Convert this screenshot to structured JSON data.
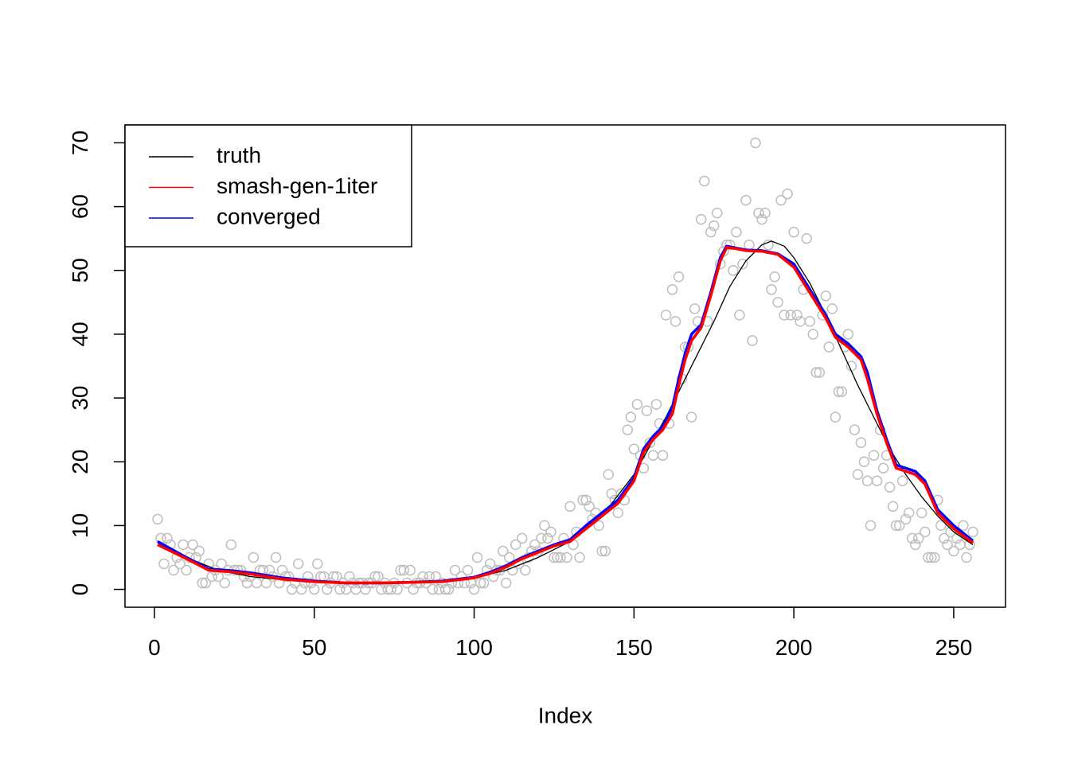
{
  "chart_data": {
    "type": "scatter",
    "xlabel": "Index",
    "xlim": [
      -9.2,
      266.2
    ],
    "ylim": [
      -2.8,
      72.8
    ],
    "xticks": [
      0,
      50,
      100,
      150,
      200,
      250
    ],
    "yticks": [
      0,
      10,
      20,
      30,
      40,
      50,
      60,
      70
    ],
    "legend": "top-left",
    "points": {
      "color": "#bebebe",
      "x": [
        1,
        2,
        3,
        4,
        5,
        6,
        7,
        8,
        9,
        10,
        11,
        12,
        13,
        14,
        15,
        16,
        17,
        18,
        19,
        20,
        21,
        22,
        23,
        24,
        25,
        26,
        27,
        28,
        29,
        30,
        31,
        32,
        33,
        34,
        35,
        36,
        37,
        38,
        39,
        40,
        41,
        42,
        43,
        44,
        45,
        46,
        47,
        48,
        49,
        50,
        51,
        52,
        53,
        54,
        55,
        56,
        57,
        58,
        59,
        60,
        61,
        62,
        63,
        64,
        65,
        66,
        67,
        68,
        69,
        70,
        71,
        72,
        73,
        74,
        75,
        76,
        77,
        78,
        79,
        80,
        81,
        82,
        83,
        84,
        85,
        86,
        87,
        88,
        89,
        90,
        91,
        92,
        93,
        94,
        95,
        96,
        97,
        98,
        99,
        100,
        101,
        102,
        103,
        104,
        105,
        106,
        107,
        108,
        109,
        110,
        111,
        112,
        113,
        114,
        115,
        116,
        117,
        118,
        119,
        120,
        121,
        122,
        123,
        124,
        125,
        126,
        127,
        128,
        129,
        130,
        131,
        132,
        133,
        134,
        135,
        136,
        137,
        138,
        139,
        140,
        141,
        142,
        143,
        144,
        145,
        146,
        147,
        148,
        149,
        150,
        151,
        152,
        153,
        154,
        155,
        156,
        157,
        158,
        159,
        160,
        161,
        162,
        163,
        164,
        165,
        166,
        167,
        168,
        169,
        170,
        171,
        172,
        173,
        174,
        175,
        176,
        177,
        178,
        179,
        180,
        181,
        182,
        183,
        184,
        185,
        186,
        187,
        188,
        189,
        190,
        191,
        192,
        193,
        194,
        195,
        196,
        197,
        198,
        199,
        200,
        201,
        202,
        203,
        204,
        205,
        206,
        207,
        208,
        209,
        210,
        211,
        212,
        213,
        214,
        215,
        216,
        217,
        218,
        219,
        220,
        221,
        222,
        223,
        224,
        225,
        226,
        227,
        228,
        229,
        230,
        231,
        232,
        233,
        234,
        235,
        236,
        237,
        238,
        239,
        240,
        241,
        242,
        243,
        244,
        245,
        246,
        247,
        248,
        249,
        250,
        251,
        252,
        253,
        254,
        255,
        256
      ],
      "values": [
        11,
        8,
        4,
        8,
        7,
        3,
        5,
        4,
        7,
        3,
        5,
        7,
        5,
        6,
        1,
        1,
        4,
        2,
        3,
        2,
        4,
        1,
        3,
        7,
        3,
        3,
        3,
        2,
        1,
        2,
        5,
        1,
        3,
        3,
        1,
        3,
        2,
        5,
        1,
        3,
        2,
        2,
        0,
        1,
        4,
        0,
        1,
        2,
        1,
        0,
        4,
        2,
        2,
        0,
        1,
        2,
        2,
        0,
        1,
        0,
        2,
        1,
        0,
        1,
        1,
        0,
        1,
        1,
        2,
        2,
        0,
        1,
        0,
        0,
        1,
        0,
        3,
        3,
        1,
        3,
        0,
        1,
        1,
        2,
        1,
        2,
        0,
        2,
        0,
        1,
        0,
        0,
        1,
        3,
        1,
        2,
        1,
        3,
        1,
        0,
        5,
        1,
        1,
        3,
        4,
        2,
        3,
        3,
        6,
        1,
        5,
        3,
        7,
        4,
        8,
        3,
        5,
        6,
        7,
        6,
        8,
        10,
        8,
        9,
        5,
        5,
        5,
        8,
        5,
        13,
        7,
        9,
        5,
        14,
        14,
        13,
        11,
        12,
        10,
        6,
        6,
        18,
        15,
        14,
        12,
        15,
        14,
        25,
        27,
        22,
        29,
        21,
        19,
        28,
        23,
        21,
        29,
        26,
        21,
        43,
        26,
        47,
        42,
        49,
        33,
        38,
        38,
        27,
        44,
        42,
        58,
        64,
        42,
        56,
        57,
        59,
        51,
        53,
        54,
        54,
        50,
        56,
        43,
        51,
        61,
        54,
        39,
        70,
        59,
        58,
        59,
        54,
        47,
        49,
        45,
        61,
        43,
        62,
        43,
        56,
        43,
        42,
        47,
        55,
        42,
        40,
        34,
        34,
        43,
        46,
        38,
        44,
        27,
        31,
        31,
        38,
        40,
        35,
        25,
        18,
        23,
        20,
        17,
        10,
        21,
        17,
        25,
        19,
        21,
        16,
        13,
        10,
        10,
        17,
        11,
        12,
        8,
        7,
        8,
        12,
        9,
        5,
        5,
        5,
        14,
        10,
        8,
        7,
        9,
        6,
        8,
        7,
        10,
        5,
        7,
        9
      ]
    },
    "series": [
      {
        "name": "truth",
        "color": "#000000",
        "x": [
          1,
          10,
          20,
          30,
          40,
          50,
          60,
          70,
          80,
          90,
          100,
          110,
          120,
          130,
          140,
          150,
          160,
          170,
          175,
          180,
          185,
          190,
          193,
          197,
          200,
          205,
          210,
          215,
          220,
          225,
          230,
          235,
          240,
          245,
          250,
          256
        ],
        "values": [
          7.5,
          5,
          3,
          2,
          1.5,
          1.2,
          1,
          1,
          1.1,
          1.3,
          1.8,
          3,
          5,
          7.5,
          11.5,
          18,
          27,
          37,
          42,
          47.5,
          51.5,
          54,
          54.6,
          53.8,
          52,
          48,
          43,
          37.5,
          32,
          27,
          22,
          18,
          14.5,
          11.5,
          9,
          7
        ]
      },
      {
        "name": "smash-gen-1iter",
        "color": "#ff0000",
        "x": [
          1,
          10,
          17,
          25,
          30,
          40,
          50,
          60,
          70,
          80,
          90,
          100,
          105,
          110,
          115,
          120,
          125,
          130,
          135,
          140,
          145,
          150,
          153,
          156,
          159,
          162,
          164,
          166,
          168,
          171,
          174,
          177,
          179,
          182,
          185,
          190,
          195,
          200,
          205,
          210,
          213,
          217,
          221,
          223,
          226,
          229,
          232,
          235,
          238,
          241,
          245,
          250,
          256
        ],
        "values": [
          7,
          4.8,
          3,
          2.7,
          2.4,
          1.6,
          1.2,
          1,
          1,
          1.1,
          1.2,
          1.8,
          2.5,
          3.5,
          4.8,
          5.8,
          6.8,
          7.5,
          9.5,
          11.5,
          13.5,
          17,
          21.5,
          23.5,
          25,
          27.5,
          32,
          36,
          39,
          41,
          46,
          51.5,
          53.6,
          53.4,
          53.1,
          53,
          52.5,
          50.5,
          46.5,
          42.5,
          39.5,
          38,
          36,
          33,
          27.5,
          23,
          19,
          18.5,
          18,
          16.5,
          12,
          9.5,
          7.3
        ]
      },
      {
        "name": "converged",
        "color": "#0000ff",
        "x": [
          1,
          10,
          17,
          25,
          30,
          40,
          50,
          60,
          70,
          80,
          90,
          100,
          105,
          110,
          115,
          120,
          125,
          130,
          135,
          140,
          145,
          150,
          153,
          156,
          159,
          162,
          164,
          166,
          168,
          171,
          174,
          177,
          179,
          182,
          185,
          190,
          195,
          200,
          205,
          210,
          213,
          217,
          221,
          223,
          226,
          229,
          232,
          235,
          238,
          241,
          245,
          250,
          256
        ],
        "values": [
          7.5,
          5,
          3.2,
          2.9,
          2.6,
          1.8,
          1.3,
          1,
          1,
          1.1,
          1.3,
          1.9,
          2.7,
          3.7,
          5,
          6,
          7,
          7.8,
          10,
          12,
          14,
          17.5,
          22,
          24,
          25.5,
          28.5,
          33,
          37,
          40,
          41.5,
          46.5,
          52,
          53.8,
          53.5,
          53.2,
          53.1,
          52.6,
          51,
          47,
          43,
          40,
          38.5,
          36.5,
          34,
          28,
          23.5,
          19.5,
          19,
          18.5,
          17,
          12.5,
          10,
          7.6
        ]
      }
    ]
  }
}
